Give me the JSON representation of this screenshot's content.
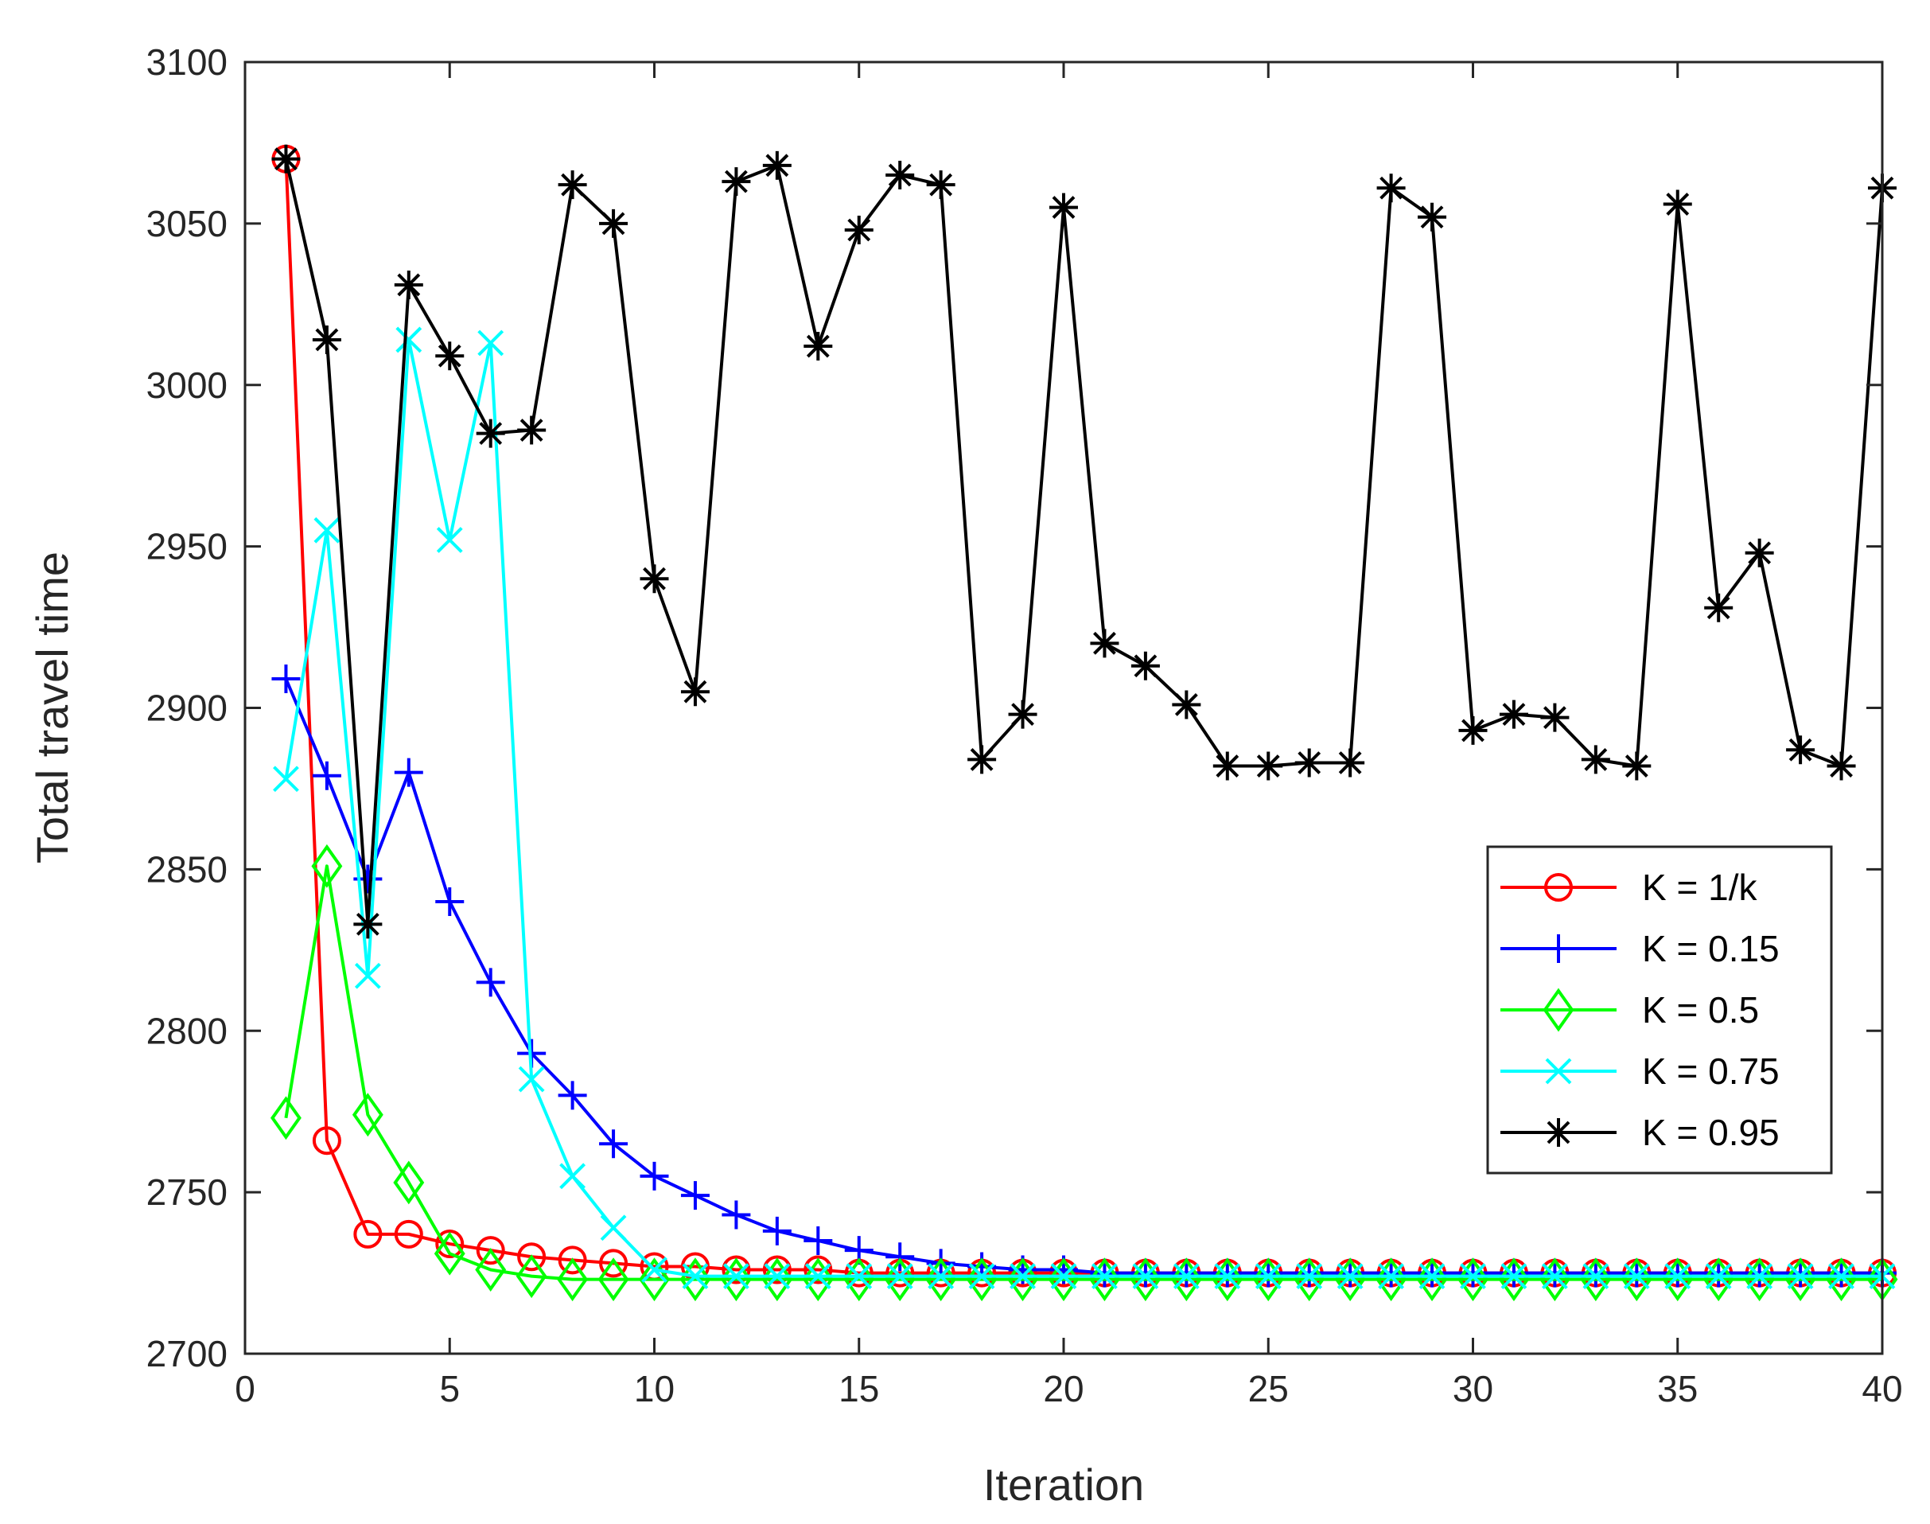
{
  "chart_data": {
    "type": "line",
    "title": "",
    "xlabel": "Iteration",
    "ylabel": "Total travel time",
    "xlim": [
      0,
      40
    ],
    "ylim": [
      2700,
      3100
    ],
    "xticks": [
      0,
      5,
      10,
      15,
      20,
      25,
      30,
      35,
      40
    ],
    "yticks": [
      2700,
      2750,
      2800,
      2850,
      2900,
      2950,
      3000,
      3050,
      3100
    ],
    "grid": false,
    "legend_position": "right-center",
    "x": [
      1,
      2,
      3,
      4,
      5,
      6,
      7,
      8,
      9,
      10,
      11,
      12,
      13,
      14,
      15,
      16,
      17,
      18,
      19,
      20,
      21,
      22,
      23,
      24,
      25,
      26,
      27,
      28,
      29,
      30,
      31,
      32,
      33,
      34,
      35,
      36,
      37,
      38,
      39,
      40
    ],
    "series": [
      {
        "name": "K = 1/k",
        "color": "#ff0000",
        "marker": "circle",
        "values": [
          3070,
          2766,
          2737,
          2737,
          2734,
          2732,
          2730,
          2729,
          2728,
          2727,
          2727,
          2726,
          2726,
          2726,
          2725,
          2725,
          2725,
          2725,
          2725,
          2725,
          2725,
          2725,
          2725,
          2725,
          2725,
          2725,
          2725,
          2725,
          2725,
          2725,
          2725,
          2725,
          2725,
          2725,
          2725,
          2725,
          2725,
          2725,
          2725,
          2725
        ]
      },
      {
        "name": "K = 0.15",
        "color": "#0000ff",
        "marker": "plus",
        "values": [
          2909,
          2879,
          2847,
          2880,
          2840,
          2815,
          2793,
          2780,
          2765,
          2755,
          2749,
          2743,
          2738,
          2735,
          2732,
          2730,
          2728,
          2727,
          2726,
          2726,
          2725,
          2725,
          2725,
          2725,
          2725,
          2725,
          2725,
          2725,
          2725,
          2725,
          2725,
          2725,
          2725,
          2725,
          2725,
          2725,
          2725,
          2725,
          2725,
          2725
        ]
      },
      {
        "name": "K = 0.5",
        "color": "#00ff00",
        "marker": "diamond",
        "values": [
          2773,
          2851,
          2774,
          2753,
          2731,
          2726,
          2724,
          2723,
          2723,
          2723,
          2723,
          2723,
          2723,
          2723,
          2723,
          2723,
          2723,
          2723,
          2723,
          2723,
          2723,
          2723,
          2723,
          2723,
          2723,
          2723,
          2723,
          2723,
          2723,
          2723,
          2723,
          2723,
          2723,
          2723,
          2723,
          2723,
          2723,
          2723,
          2723,
          2723
        ]
      },
      {
        "name": "K = 0.75",
        "color": "#00ffff",
        "marker": "x",
        "values": [
          2878,
          2955,
          2817,
          3014,
          2952,
          3013,
          2785,
          2755,
          2739,
          2726,
          2724,
          2724,
          2724,
          2724,
          2724,
          2724,
          2724,
          2724,
          2724,
          2724,
          2724,
          2724,
          2724,
          2724,
          2724,
          2724,
          2724,
          2724,
          2724,
          2724,
          2724,
          2724,
          2724,
          2724,
          2724,
          2724,
          2724,
          2724,
          2724,
          2724
        ]
      },
      {
        "name": "K = 0.95",
        "color": "#000000",
        "marker": "asterisk",
        "values": [
          3070,
          3014,
          2833,
          3031,
          3009,
          2985,
          2986,
          3062,
          3050,
          2940,
          2905,
          3063,
          3068,
          3012,
          3048,
          3065,
          3062,
          2884,
          2898,
          3055,
          2920,
          2913,
          2901,
          2882,
          2882,
          2883,
          2883,
          3061,
          3052,
          2893,
          2898,
          2897,
          2884,
          2882,
          3056,
          2931,
          2948,
          2887,
          2882,
          3061
        ]
      }
    ]
  }
}
